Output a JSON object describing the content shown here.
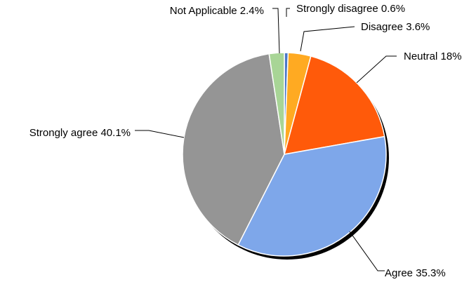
{
  "chart_data": {
    "type": "pie",
    "title": "",
    "start_angle_deg": 90,
    "direction": "clockwise",
    "slices": [
      {
        "label": "Strongly disagree",
        "value": 0.6,
        "label_text": "Strongly disagree 0.6%",
        "color": "#4a78c8"
      },
      {
        "label": "Disagree",
        "value": 3.6,
        "label_text": "Disagree 3.6%",
        "color": "#ffaa22"
      },
      {
        "label": "Neutral",
        "value": 18,
        "label_text": "Neutral 18%",
        "color": "#ff5a0a"
      },
      {
        "label": "Agree",
        "value": 35.3,
        "label_text": "Agree 35.3%",
        "color": "#7ea7ea"
      },
      {
        "label": "Strongly agree",
        "value": 40.1,
        "label_text": "Strongly agree 40.1%",
        "color": "#959595"
      },
      {
        "label": "Not Applicable",
        "value": 2.4,
        "label_text": "Not Applicable 2.4%",
        "color": "#a8d596"
      }
    ],
    "legend": "none",
    "data_labels": "outside-with-leader-lines"
  }
}
